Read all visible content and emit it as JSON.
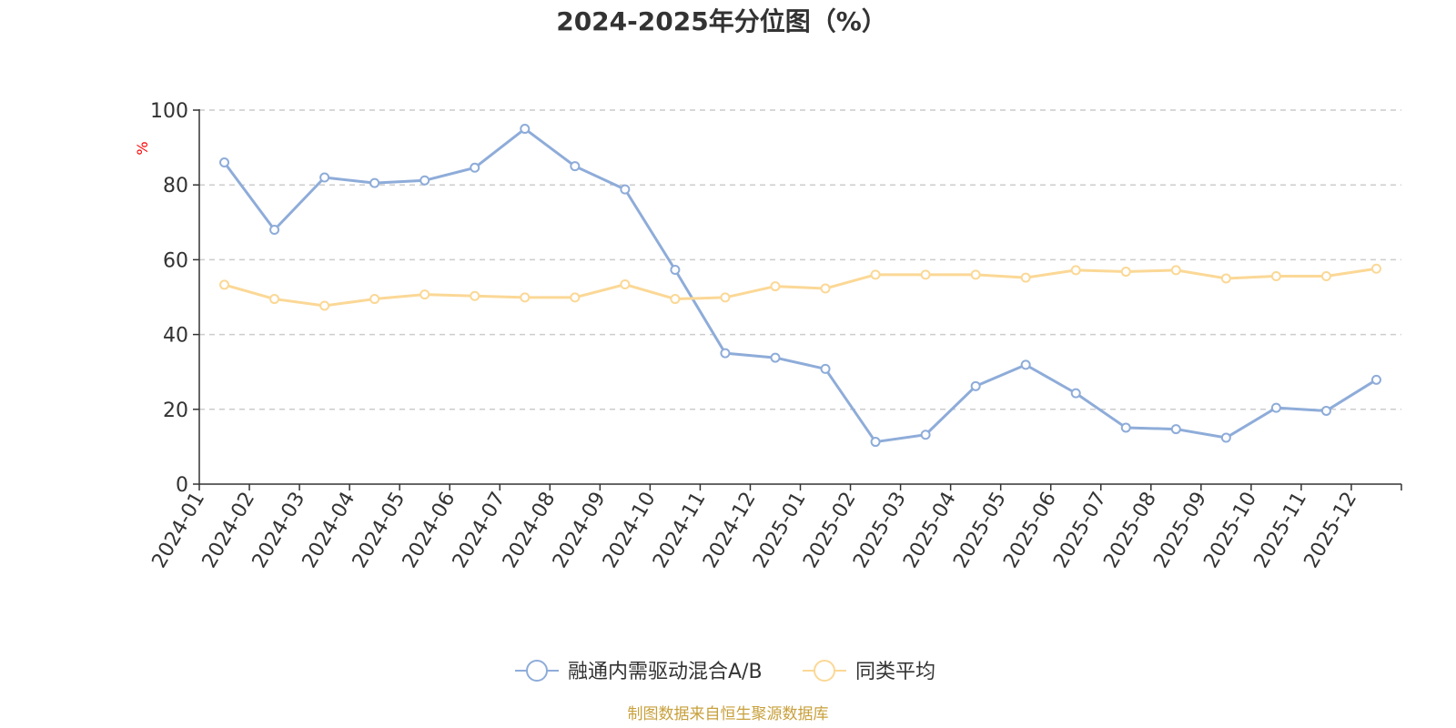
{
  "chart_data": {
    "type": "line",
    "title": "2024-2025年分位图（%）",
    "ylabel": "%",
    "ylim": [
      0,
      100
    ],
    "yticks": [
      0,
      20,
      40,
      60,
      80,
      100
    ],
    "grid": true,
    "legend_position": "bottom",
    "categories": [
      "2024-01",
      "2024-02",
      "2024-03",
      "2024-04",
      "2024-05",
      "2024-06",
      "2024-07",
      "2024-08",
      "2024-09",
      "2024-10",
      "2024-11",
      "2024-12",
      "2025-01",
      "2025-02",
      "2025-03",
      "2025-04",
      "2025-05",
      "2025-06",
      "2025-07",
      "2025-08",
      "2025-09",
      "2025-10",
      "2025-11",
      "2025-12"
    ],
    "series": [
      {
        "name": "融通内需驱动混合A/B",
        "color": "#8eacd9",
        "values": [
          86.0,
          68.0,
          82.0,
          80.5,
          81.2,
          84.6,
          95.0,
          85.0,
          78.8,
          57.3,
          35.0,
          33.8,
          30.8,
          11.3,
          13.2,
          26.2,
          31.9,
          24.3,
          15.1,
          14.7,
          12.4,
          20.4,
          19.6,
          27.9
        ]
      },
      {
        "name": "同类平均",
        "color": "#fbd896",
        "values": [
          53.3,
          49.5,
          47.7,
          49.5,
          50.7,
          50.3,
          49.9,
          49.9,
          53.4,
          49.5,
          49.9,
          52.9,
          52.3,
          56.0,
          56.0,
          56.0,
          55.2,
          57.2,
          56.8,
          57.2,
          55.0,
          55.6,
          55.6,
          57.6
        ]
      }
    ],
    "source": "制图数据来自恒生聚源数据库"
  }
}
